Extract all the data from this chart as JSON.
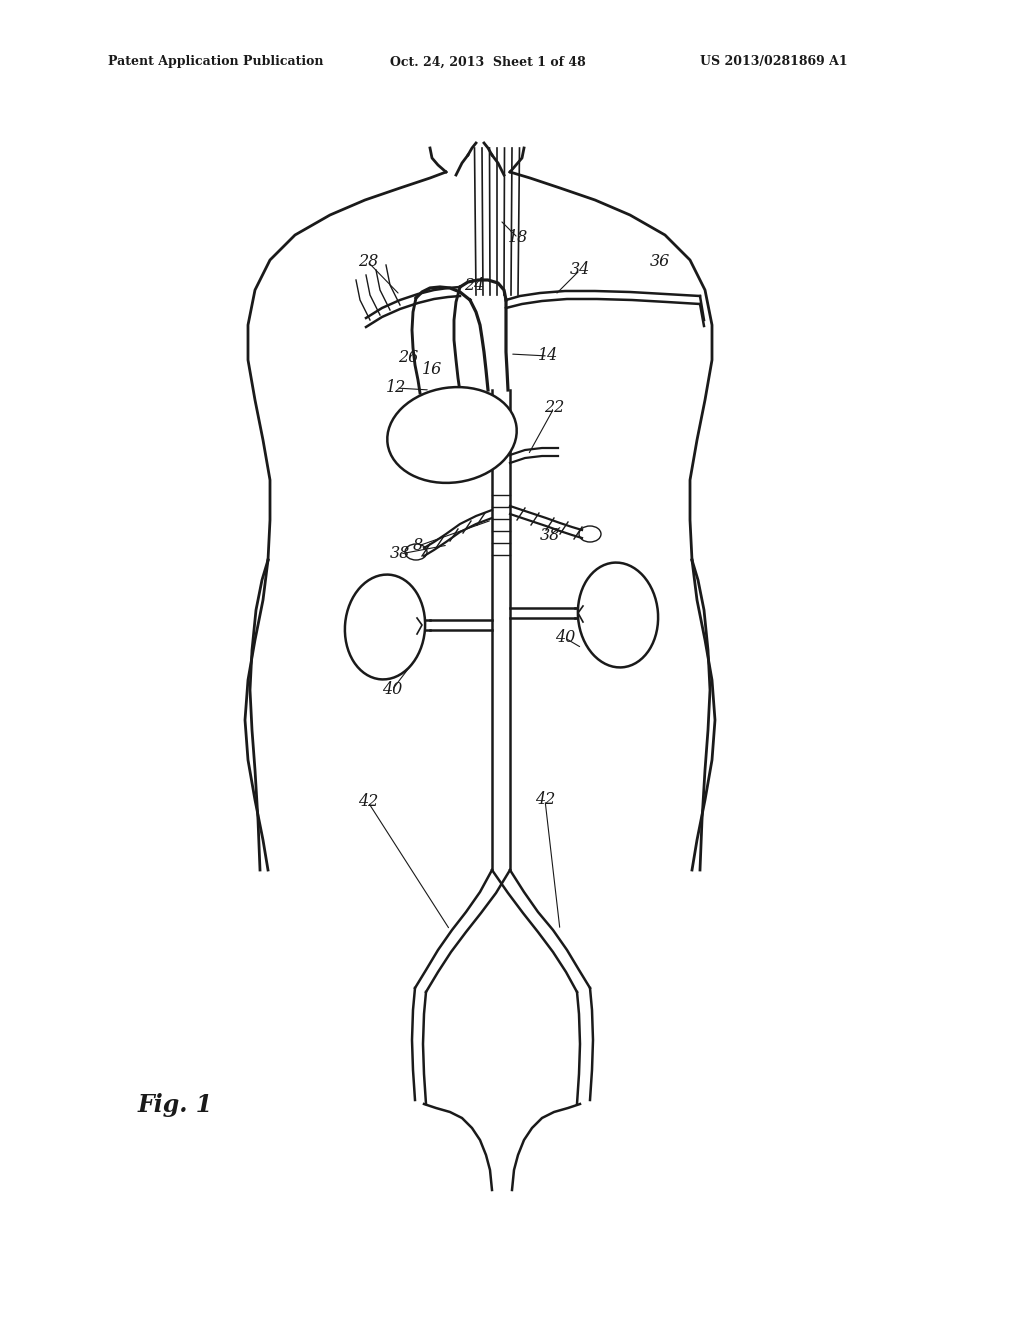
{
  "bg_color": "#ffffff",
  "line_color": "#1a1a1a",
  "text_color": "#1a1a1a",
  "header_left": "Patent Application Publication",
  "header_mid": "Oct. 24, 2013  Sheet 1 of 48",
  "header_right": "US 2013/0281869 A1",
  "fig_label": "Fig. 1"
}
